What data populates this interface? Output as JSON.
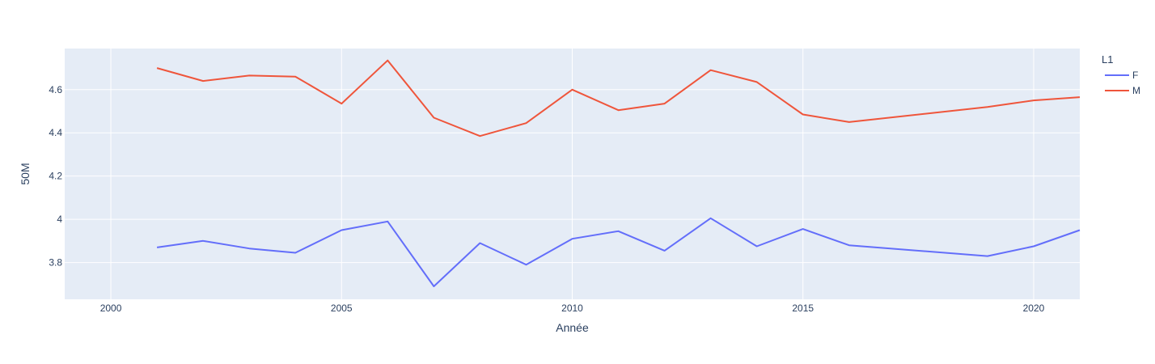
{
  "chart_data": {
    "type": "line",
    "xlabel": "Année",
    "ylabel": "50M",
    "xlim": [
      1999,
      2021
    ],
    "ylim": [
      3.63,
      4.79
    ],
    "x_ticks": [
      2000,
      2005,
      2010,
      2015,
      2020
    ],
    "y_ticks": [
      3.8,
      4,
      4.2,
      4.4,
      4.6
    ],
    "y_tick_labels": [
      "3.8",
      "4",
      "4.2",
      "4.4",
      "4.6"
    ],
    "grid": true,
    "legend_title": "L1",
    "legend_position": "top-right",
    "series": [
      {
        "name": "F",
        "color": "#636efa",
        "x": [
          2001,
          2002,
          2003,
          2004,
          2005,
          2006,
          2007,
          2008,
          2009,
          2010,
          2011,
          2012,
          2013,
          2014,
          2015,
          2016,
          2019,
          2020,
          2021
        ],
        "y": [
          3.87,
          3.9,
          3.865,
          3.845,
          3.95,
          3.99,
          3.69,
          3.89,
          3.79,
          3.91,
          3.945,
          3.855,
          4.005,
          3.875,
          3.955,
          3.88,
          3.83,
          3.875,
          3.95
        ]
      },
      {
        "name": "M",
        "color": "#ef553b",
        "x": [
          2001,
          2002,
          2003,
          2004,
          2005,
          2006,
          2007,
          2008,
          2009,
          2010,
          2011,
          2012,
          2013,
          2014,
          2015,
          2016,
          2019,
          2020,
          2021
        ],
        "y": [
          4.7,
          4.64,
          4.665,
          4.66,
          4.535,
          4.735,
          4.47,
          4.385,
          4.445,
          4.6,
          4.505,
          4.535,
          4.69,
          4.635,
          4.485,
          4.45,
          4.52,
          4.55,
          4.565
        ]
      }
    ]
  }
}
